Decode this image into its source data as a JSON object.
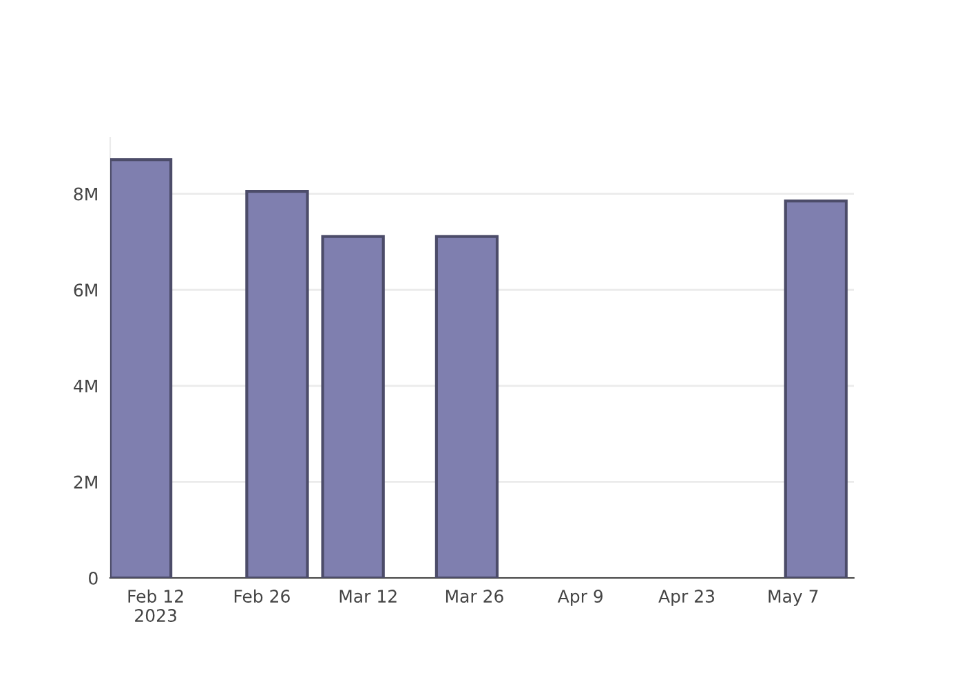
{
  "chart_data": {
    "type": "bar",
    "x": [
      "2023-02-10",
      "2023-02-28",
      "2023-03-10",
      "2023-03-25",
      "2023-05-10"
    ],
    "values": [
      8710000,
      8050000,
      7110000,
      7110000,
      7850000
    ],
    "color": "#7f7faf",
    "xlim": [
      "2023-02-06",
      "2023-05-15"
    ],
    "xticks": [
      {
        "value": "2023-02-12",
        "label": "Feb 12\n2023"
      },
      {
        "value": "2023-02-26",
        "label": "Feb 26"
      },
      {
        "value": "2023-03-12",
        "label": "Mar 12"
      },
      {
        "value": "2023-03-26",
        "label": "Mar 26"
      },
      {
        "value": "2023-04-09",
        "label": "Apr 9"
      },
      {
        "value": "2023-04-23",
        "label": "Apr 23"
      },
      {
        "value": "2023-05-07",
        "label": "May 7"
      }
    ],
    "ylim": [
      0,
      9170000
    ],
    "yticks": [
      0,
      {
        "value": 2000000,
        "label": "2M"
      },
      {
        "value": 4000000,
        "label": "4M"
      },
      {
        "value": 6000000,
        "label": "6M"
      },
      {
        "value": 8000000,
        "label": "8M"
      }
    ],
    "grid": "y"
  }
}
